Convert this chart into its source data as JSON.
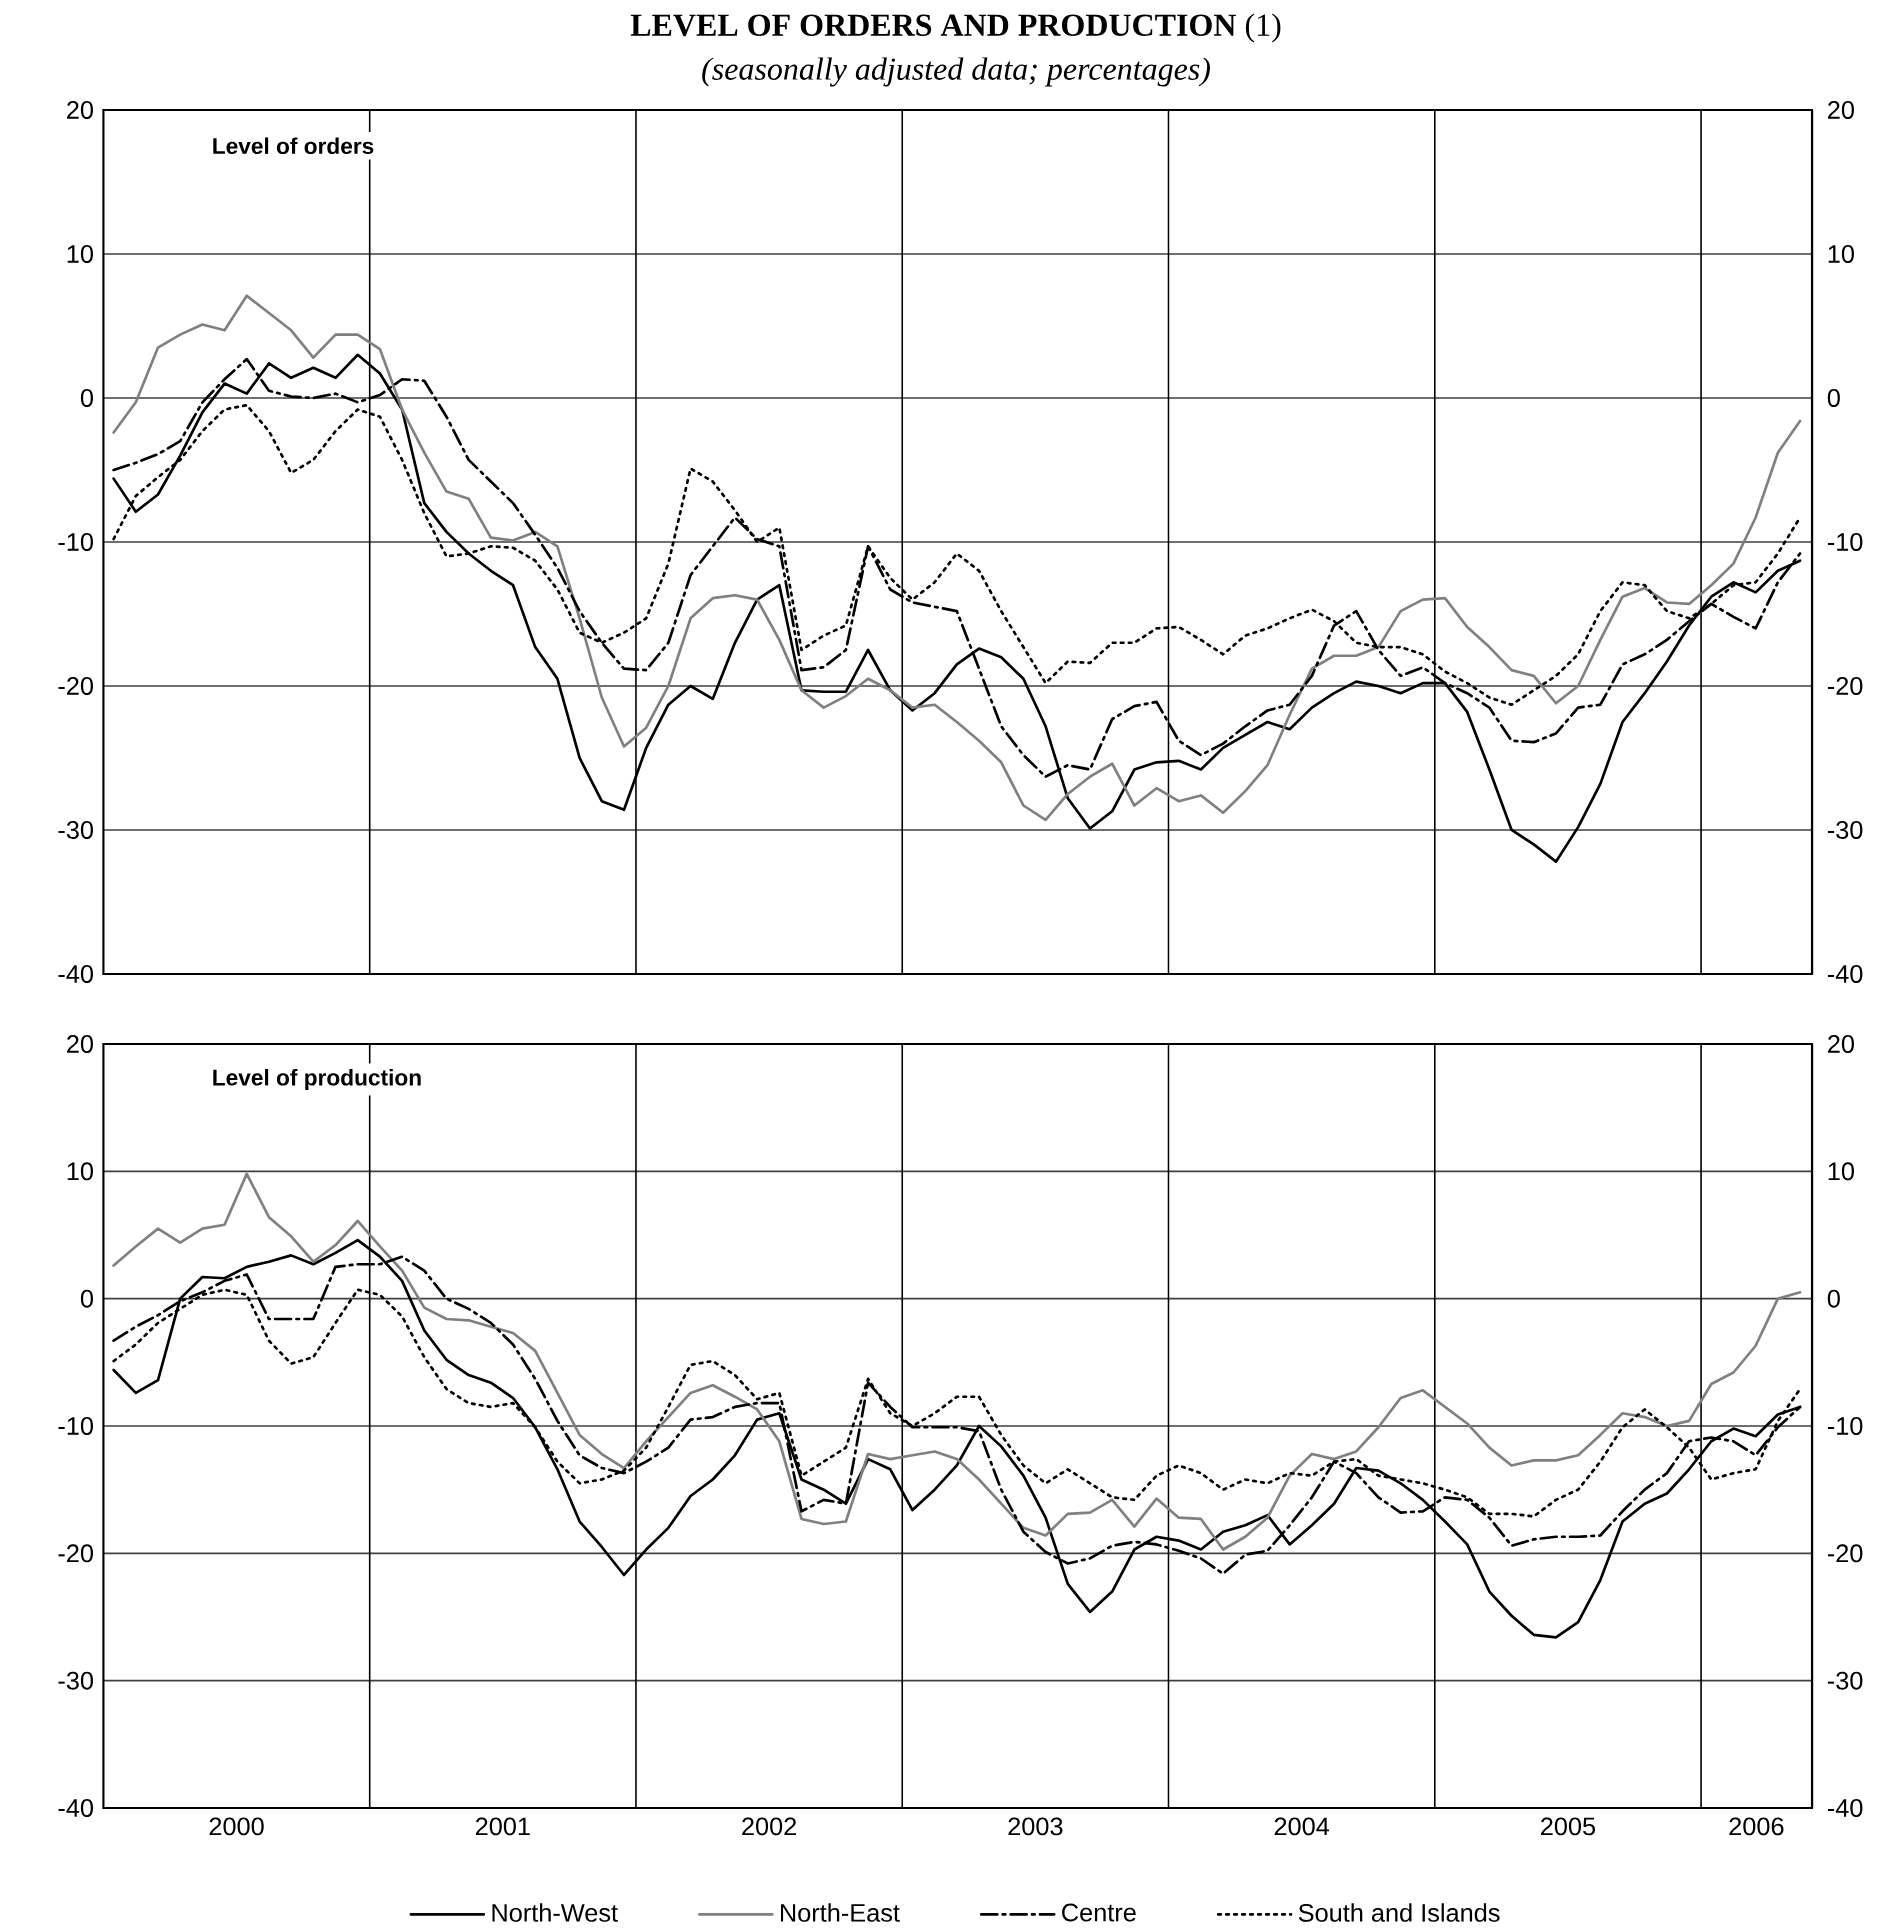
{
  "chart_data": [
    {
      "type": "line",
      "title": "**LEVEL OF ORDERS AND PRODUCTION** (1)",
      "subtitle": "(seasonally adjusted data; percentages)",
      "annotations": [
        "Level of orders"
      ],
      "x": [
        "2000-01-15",
        "2000-02-15",
        "2000-03-15",
        "2000-04-15",
        "2000-05-15",
        "2000-06-15",
        "2000-07-15",
        "2000-08-15",
        "2000-09-15",
        "2000-10-15",
        "2000-11-15",
        "2000-12-15",
        "2001-01-15",
        "2001-02-15",
        "2001-03-15",
        "2001-04-15",
        "2001-05-15",
        "2001-06-15",
        "2001-07-15",
        "2001-08-15",
        "2001-09-15",
        "2001-10-15",
        "2001-11-15",
        "2001-12-15",
        "2002-01-15",
        "2002-02-15",
        "2002-03-15",
        "2002-04-15",
        "2002-05-15",
        "2002-06-15",
        "2002-07-15",
        "2002-08-15",
        "2002-09-15",
        "2002-10-15",
        "2002-11-15",
        "2002-12-15",
        "2003-01-15",
        "2003-02-15",
        "2003-03-15",
        "2003-04-15",
        "2003-05-15",
        "2003-06-15",
        "2003-07-15",
        "2003-08-15",
        "2003-09-15",
        "2003-10-15",
        "2003-11-15",
        "2003-12-15",
        "2004-01-15",
        "2004-02-15",
        "2004-03-15",
        "2004-04-15",
        "2004-05-15",
        "2004-06-15",
        "2004-07-15",
        "2004-08-15",
        "2004-09-15",
        "2004-10-15",
        "2004-11-15",
        "2004-12-15",
        "2005-01-15",
        "2005-02-15",
        "2005-03-15",
        "2005-04-15",
        "2005-05-15",
        "2005-06-15",
        "2005-07-15",
        "2005-08-15",
        "2005-09-15",
        "2005-10-15",
        "2005-11-15",
        "2005-12-15",
        "2006-01-15",
        "2006-02-15",
        "2006-03-15",
        "2006-04-15",
        "2006-05-15"
      ],
      "series": [
        {
          "color": "#000000",
          "line_style": "solid",
          "values": [
            -5.6,
            -7.9,
            -6.7,
            -4,
            -1,
            1,
            0.3,
            2.4,
            1.4,
            2.1,
            1.4,
            3,
            1.7,
            -0.8,
            -7.3,
            -9.3,
            -10.8,
            -12,
            -13,
            -17.3,
            -19.5,
            -25,
            -28,
            -28.6,
            -24.3,
            -21.3,
            -20,
            -20.9,
            -17,
            -14,
            -13,
            -20.3,
            -20.4,
            -20.4,
            -17.5,
            -20.3,
            -21.7,
            -20.5,
            -18.5,
            -17.4,
            -18,
            -19.5,
            -22.8,
            -27.8,
            -29.9,
            -28.7,
            -25.8,
            -25.3,
            -25.2,
            -25.8,
            -24.3,
            -23.4,
            -22.5,
            -23,
            -21.5,
            -20.5,
            -19.7,
            -20,
            -20.5,
            -19.8,
            -19.8,
            -21.8,
            -25.8,
            -30,
            -31,
            -32.2,
            -29.8,
            -26.8,
            -22.5,
            -20.5,
            -18.3,
            -15.8,
            -13.8,
            -12.8,
            -13.5,
            -12,
            -11.3
          ]
        },
        {
          "color": "#808080",
          "line_style": "solid",
          "values": [
            -2.4,
            -0.3,
            3.5,
            4.4,
            5.1,
            4.7,
            7.1,
            5.9,
            4.7,
            2.8,
            4.4,
            4.4,
            3.4,
            -0.8,
            -3.8,
            -6.5,
            -7,
            -9.7,
            -9.9,
            -9.3,
            -10.3,
            -15.3,
            -20.8,
            -24.2,
            -22.9,
            -20,
            -15.3,
            -13.9,
            -13.7,
            -14,
            -16.8,
            -20.3,
            -21.5,
            -20.7,
            -19.5,
            -20.3,
            -21.5,
            -21.3,
            -22.5,
            -23.8,
            -25.3,
            -28.3,
            -29.3,
            -27.5,
            -26.3,
            -25.4,
            -28.3,
            -27.1,
            -28,
            -27.6,
            -28.8,
            -27.3,
            -25.5,
            -22,
            -18.8,
            -17.9,
            -17.9,
            -17.3,
            -14.8,
            -14,
            -13.9,
            -15.9,
            -17.3,
            -18.9,
            -19.3,
            -21.2,
            -20,
            -16.8,
            -13.8,
            -13.2,
            -14.2,
            -14.3,
            -13,
            -11.5,
            -8.3,
            -3.8,
            -1.6
          ]
        },
        {
          "color": "#000000",
          "line_style": "dashdot",
          "values": [
            -5,
            -4.5,
            -3.9,
            -3,
            -0.3,
            1.3,
            2.7,
            0.5,
            0.1,
            0,
            0.3,
            -0.3,
            0.2,
            1.3,
            1.2,
            -1.3,
            -4.3,
            -5.8,
            -7.3,
            -9.5,
            -11.8,
            -14.8,
            -17,
            -18.8,
            -18.9,
            -17,
            -12.3,
            -10.3,
            -8.3,
            -9.8,
            -10.3,
            -18.9,
            -18.7,
            -17.5,
            -10.3,
            -13.3,
            -14.2,
            -14.5,
            -14.8,
            -18.8,
            -22.8,
            -24.8,
            -26.3,
            -25.5,
            -25.8,
            -22.3,
            -21.4,
            -21.1,
            -23.8,
            -24.8,
            -24,
            -22.8,
            -21.7,
            -21.3,
            -19.3,
            -15.8,
            -14.8,
            -17.5,
            -19.3,
            -18.7,
            -19.8,
            -20.5,
            -21.5,
            -23.8,
            -23.9,
            -23.3,
            -21.5,
            -21.3,
            -18.5,
            -17.8,
            -16.8,
            -15.5,
            -14.3,
            -15.2,
            -16,
            -12.8,
            -10.8
          ]
        },
        {
          "color": "#000000",
          "line_style": "dotted",
          "values": [
            -9.8,
            -6.8,
            -5.5,
            -4.3,
            -2.3,
            -0.8,
            -0.5,
            -2.3,
            -5.2,
            -4.3,
            -2.3,
            -0.8,
            -1.3,
            -4.3,
            -8,
            -11,
            -10.8,
            -10.3,
            -10.4,
            -11.3,
            -13.3,
            -16.3,
            -17,
            -16.3,
            -15.3,
            -11.5,
            -4.9,
            -5.8,
            -7.8,
            -10,
            -9,
            -17.5,
            -16.5,
            -15.8,
            -10.3,
            -12.5,
            -14,
            -12.8,
            -10.8,
            -12,
            -14.8,
            -17.3,
            -19.8,
            -18.3,
            -18.4,
            -17,
            -17,
            -16,
            -15.9,
            -16.8,
            -17.8,
            -16.5,
            -16,
            -15.3,
            -14.7,
            -15.5,
            -17,
            -17.3,
            -17.3,
            -17.8,
            -19,
            -19.8,
            -20.8,
            -21.3,
            -20.3,
            -19.3,
            -17.8,
            -14.8,
            -12.8,
            -13,
            -14.8,
            -15.3,
            -14.3,
            -13,
            -12.8,
            -10.8,
            -8.3
          ]
        }
      ],
      "xlim": [
        "2000-01-01",
        "2006-06-01"
      ],
      "ylim": [
        -40,
        20
      ],
      "yticks": [
        -40,
        -30,
        -20,
        -10,
        0,
        10,
        20
      ],
      "y2lim": [
        -40,
        20
      ],
      "y2ticks": [
        -40,
        -30,
        -20,
        -10,
        0,
        10,
        20
      ],
      "ref_lines": [
        {
          "axis": "x",
          "value": "2001-01-01",
          "color": "#000000"
        },
        {
          "axis": "x",
          "value": "2002-01-01",
          "color": "#000000"
        },
        {
          "axis": "x",
          "value": "2003-01-01",
          "color": "#000000"
        },
        {
          "axis": "x",
          "value": "2004-01-01",
          "color": "#000000"
        },
        {
          "axis": "x",
          "value": "2005-01-01",
          "color": "#000000"
        },
        {
          "axis": "x",
          "value": "2006-01-01",
          "color": "#000000"
        }
      ],
      "grid": "y",
      "tick_labels": "y"
    },
    {
      "type": "line",
      "annotations": [
        "Level of production"
      ],
      "x": [
        "2000-01-15",
        "2000-02-15",
        "2000-03-15",
        "2000-04-15",
        "2000-05-15",
        "2000-06-15",
        "2000-07-15",
        "2000-08-15",
        "2000-09-15",
        "2000-10-15",
        "2000-11-15",
        "2000-12-15",
        "2001-01-15",
        "2001-02-15",
        "2001-03-15",
        "2001-04-15",
        "2001-05-15",
        "2001-06-15",
        "2001-07-15",
        "2001-08-15",
        "2001-09-15",
        "2001-10-15",
        "2001-11-15",
        "2001-12-15",
        "2002-01-15",
        "2002-02-15",
        "2002-03-15",
        "2002-04-15",
        "2002-05-15",
        "2002-06-15",
        "2002-07-15",
        "2002-08-15",
        "2002-09-15",
        "2002-10-15",
        "2002-11-15",
        "2002-12-15",
        "2003-01-15",
        "2003-02-15",
        "2003-03-15",
        "2003-04-15",
        "2003-05-15",
        "2003-06-15",
        "2003-07-15",
        "2003-08-15",
        "2003-09-15",
        "2003-10-15",
        "2003-11-15",
        "2003-12-15",
        "2004-01-15",
        "2004-02-15",
        "2004-03-15",
        "2004-04-15",
        "2004-05-15",
        "2004-06-15",
        "2004-07-15",
        "2004-08-15",
        "2004-09-15",
        "2004-10-15",
        "2004-11-15",
        "2004-12-15",
        "2005-01-15",
        "2005-02-15",
        "2005-03-15",
        "2005-04-15",
        "2005-05-15",
        "2005-06-15",
        "2005-07-15",
        "2005-08-15",
        "2005-09-15",
        "2005-10-15",
        "2005-11-15",
        "2005-12-15",
        "2006-01-15",
        "2006-02-15",
        "2006-03-15",
        "2006-04-15",
        "2006-05-15"
      ],
      "series": [
        {
          "name": "North-West",
          "color": "#000000",
          "line_style": "solid",
          "values": [
            -5.6,
            -7.4,
            -6.4,
            0,
            1.7,
            1.6,
            2.5,
            2.9,
            3.4,
            2.7,
            3.6,
            4.6,
            3.3,
            1.4,
            -2.5,
            -4.8,
            -6,
            -6.6,
            -7.8,
            -10.1,
            -13.4,
            -17.5,
            -19.5,
            -21.7,
            -19.7,
            -18,
            -15.5,
            -14.2,
            -12.3,
            -9.5,
            -9,
            -14.2,
            -15,
            -16.1,
            -12.6,
            -13.4,
            -16.6,
            -15,
            -13.1,
            -10,
            -11.6,
            -13.9,
            -17.2,
            -22.4,
            -24.6,
            -23,
            -19.7,
            -18.7,
            -19,
            -19.7,
            -18.3,
            -17.8,
            -17,
            -19.3,
            -17.8,
            -16.1,
            -13.3,
            -13.5,
            -14.5,
            -15.8,
            -17.5,
            -19.3,
            -23,
            -24.9,
            -26.4,
            -26.6,
            -25.4,
            -22.1,
            -17.5,
            -16.1,
            -15.3,
            -13.4,
            -11.2,
            -10.2,
            -10.8,
            -9.1,
            -8.5
          ]
        },
        {
          "name": "North-East",
          "color": "#808080",
          "line_style": "solid",
          "values": [
            2.6,
            4.1,
            5.5,
            4.4,
            5.5,
            5.8,
            9.8,
            6.4,
            4.9,
            2.9,
            4.2,
            6.1,
            4.1,
            2.2,
            -0.7,
            -1.6,
            -1.7,
            -2.2,
            -2.7,
            -4.1,
            -7.4,
            -10.7,
            -12.2,
            -13.3,
            -11.2,
            -9.3,
            -7.4,
            -6.8,
            -7.7,
            -8.7,
            -11.2,
            -17.3,
            -17.7,
            -17.5,
            -12.2,
            -12.6,
            -12.3,
            -12,
            -12.6,
            -14.2,
            -16.1,
            -18,
            -18.6,
            -16.9,
            -16.8,
            -15.8,
            -17.9,
            -15.7,
            -17.2,
            -17.3,
            -19.7,
            -18.7,
            -17.2,
            -13.9,
            -12.2,
            -12.6,
            -12,
            -10.1,
            -7.8,
            -7.2,
            -8.5,
            -9.8,
            -11.7,
            -13.1,
            -12.7,
            -12.7,
            -12.3,
            -10.7,
            -9,
            -9.3,
            -10,
            -9.6,
            -6.7,
            -5.8,
            -3.7,
            0,
            0.5
          ]
        },
        {
          "name": "Centre",
          "color": "#000000",
          "line_style": "dashdot",
          "values": [
            -3.3,
            -2.2,
            -1.3,
            -0.2,
            0.5,
            1.4,
            1.9,
            -1.6,
            -1.6,
            -1.6,
            2.5,
            2.7,
            2.7,
            3.3,
            2.2,
            0,
            -0.8,
            -1.9,
            -3.6,
            -6.3,
            -9.6,
            -12.3,
            -13.3,
            -13.7,
            -12.8,
            -11.7,
            -9.5,
            -9.3,
            -8.5,
            -8.2,
            -8.2,
            -16.7,
            -15.8,
            -16.1,
            -6.6,
            -8.5,
            -10.1,
            -10.1,
            -10.1,
            -10.4,
            -15,
            -18.3,
            -19.9,
            -20.8,
            -20.4,
            -19.4,
            -19.1,
            -19.3,
            -19.8,
            -20.4,
            -21.6,
            -20.1,
            -19.8,
            -17.8,
            -15.6,
            -12.8,
            -13.7,
            -15.6,
            -16.8,
            -16.7,
            -15.6,
            -15.8,
            -17.2,
            -19.4,
            -18.9,
            -18.7,
            -18.7,
            -18.6,
            -16.7,
            -15,
            -13.7,
            -11.2,
            -10.9,
            -11.2,
            -12.3,
            -10.1,
            -8.5
          ]
        },
        {
          "name": "South and Islands",
          "color": "#000000",
          "line_style": "dotted",
          "values": [
            -4.9,
            -3.6,
            -1.9,
            -0.8,
            0.3,
            0.7,
            0.3,
            -3.3,
            -5.1,
            -4.6,
            -1.9,
            0.7,
            0.3,
            -1.4,
            -4.6,
            -7.1,
            -8.2,
            -8.5,
            -8.2,
            -10.1,
            -12.8,
            -14.5,
            -14.2,
            -13.5,
            -11.7,
            -8.5,
            -5.2,
            -4.9,
            -6,
            -7.9,
            -7.4,
            -13.9,
            -12.8,
            -11.7,
            -6.3,
            -9,
            -10,
            -9,
            -7.7,
            -7.7,
            -10.7,
            -13.1,
            -14.5,
            -13.4,
            -14.5,
            -15.6,
            -15.8,
            -13.9,
            -13.1,
            -13.7,
            -15,
            -14.2,
            -14.5,
            -13.7,
            -13.9,
            -12.8,
            -12.6,
            -13.9,
            -14.2,
            -14.5,
            -15,
            -15.6,
            -16.9,
            -16.9,
            -17.1,
            -15.8,
            -15,
            -12.8,
            -10.1,
            -8.7,
            -10.1,
            -11.7,
            -14.2,
            -13.7,
            -13.4,
            -9.6,
            -7.1
          ]
        }
      ],
      "xlim": [
        "2000-01-01",
        "2006-06-01"
      ],
      "xticks": [
        {
          "value": "2000-07-01",
          "label": "2000"
        },
        {
          "value": "2001-07-01",
          "label": "2001"
        },
        {
          "value": "2002-07-01",
          "label": "2002"
        },
        {
          "value": "2003-07-01",
          "label": "2003"
        },
        {
          "value": "2004-07-01",
          "label": "2004"
        },
        {
          "value": "2005-07-01",
          "label": "2005"
        },
        {
          "value": "2006-03-16",
          "label": "2006"
        }
      ],
      "ylim": [
        -40,
        20
      ],
      "yticks": [
        -40,
        -30,
        -20,
        -10,
        0,
        10,
        20
      ],
      "y2lim": [
        -40,
        20
      ],
      "y2ticks": [
        -40,
        -30,
        -20,
        -10,
        0,
        10,
        20
      ],
      "ref_lines": [
        {
          "axis": "x",
          "value": "2001-01-01",
          "color": "#000000"
        },
        {
          "axis": "x",
          "value": "2002-01-01",
          "color": "#000000"
        },
        {
          "axis": "x",
          "value": "2003-01-01",
          "color": "#000000"
        },
        {
          "axis": "x",
          "value": "2004-01-01",
          "color": "#000000"
        },
        {
          "axis": "x",
          "value": "2005-01-01",
          "color": "#000000"
        },
        {
          "axis": "x",
          "value": "2006-01-01",
          "color": "#000000"
        }
      ],
      "grid": "y",
      "legend": "bottom"
    }
  ]
}
